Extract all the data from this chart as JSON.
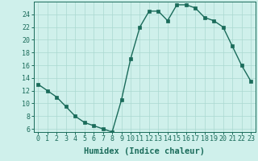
{
  "x": [
    0,
    1,
    2,
    3,
    4,
    5,
    6,
    7,
    8,
    9,
    10,
    11,
    12,
    13,
    14,
    15,
    16,
    17,
    18,
    19,
    20,
    21,
    22,
    23
  ],
  "y": [
    13,
    12,
    11,
    9.5,
    8,
    7,
    6.5,
    6,
    5.5,
    10.5,
    17,
    22,
    24.5,
    24.5,
    23,
    25.5,
    25.5,
    25,
    23.5,
    23,
    22,
    19,
    16,
    13.5
  ],
  "line_color": "#1a6b5a",
  "marker_color": "#1a6b5a",
  "bg_color": "#cff0eb",
  "grid_color": "#aad8d0",
  "xlabel": "Humidex (Indice chaleur)",
  "xlim": [
    -0.5,
    23.5
  ],
  "ylim": [
    5.5,
    26
  ],
  "yticks": [
    6,
    8,
    10,
    12,
    14,
    16,
    18,
    20,
    22,
    24
  ],
  "xticks": [
    0,
    1,
    2,
    3,
    4,
    5,
    6,
    7,
    8,
    9,
    10,
    11,
    12,
    13,
    14,
    15,
    16,
    17,
    18,
    19,
    20,
    21,
    22,
    23
  ],
  "xlabel_fontsize": 7.5,
  "tick_fontsize": 6,
  "marker_size": 2.5,
  "line_width": 1.0
}
